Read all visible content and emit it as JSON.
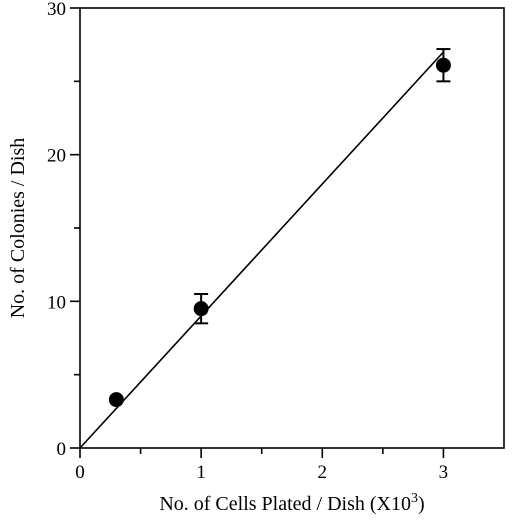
{
  "chart_data": {
    "type": "scatter",
    "title": "",
    "xlabel": "No. of Cells Plated / Dish (X10",
    "xlabel_sup": "3",
    "xlabel_close": ")",
    "ylabel": "No. of Colonies / Dish",
    "xlim": [
      0,
      3.5
    ],
    "ylim": [
      0,
      30
    ],
    "x_ticks": [
      0,
      1,
      2,
      3
    ],
    "x_tick_labels": [
      "0",
      "1",
      "2",
      "3"
    ],
    "x_minor_ticks": [
      0.5,
      1.5,
      2.5
    ],
    "y_ticks": [
      0,
      10,
      20,
      30
    ],
    "y_tick_labels": [
      "0",
      "10",
      "20",
      "30"
    ],
    "y_minor_ticks": [
      5,
      15,
      25
    ],
    "grid": false,
    "series": [
      {
        "x": [
          0.3,
          1.0,
          3.0
        ],
        "y": [
          3.3,
          9.5,
          26.1
        ],
        "error": [
          null,
          1.0,
          1.1
        ]
      }
    ],
    "fit_line": {
      "x": [
        0,
        3.0
      ],
      "y": [
        0,
        27.0
      ]
    }
  }
}
